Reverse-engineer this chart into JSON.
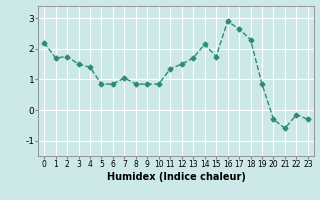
{
  "x": [
    0,
    1,
    2,
    3,
    4,
    5,
    6,
    7,
    8,
    9,
    10,
    11,
    12,
    13,
    14,
    15,
    16,
    17,
    18,
    19,
    20,
    21,
    22,
    23
  ],
  "y": [
    2.2,
    1.7,
    1.75,
    1.5,
    1.4,
    0.85,
    0.85,
    1.05,
    0.85,
    0.85,
    0.85,
    1.35,
    1.5,
    1.7,
    2.15,
    1.75,
    2.9,
    2.65,
    2.3,
    0.85,
    -0.3,
    -0.6,
    -0.15,
    -0.3
  ],
  "line_color": "#2e8b74",
  "marker": "D",
  "markersize": 2.5,
  "linewidth": 1.0,
  "xlabel": "Humidex (Indice chaleur)",
  "xlabel_fontsize": 7,
  "xlabel_weight": "bold",
  "yticks": [
    -1,
    0,
    1,
    2,
    3
  ],
  "xticks": [
    0,
    1,
    2,
    3,
    4,
    5,
    6,
    7,
    8,
    9,
    10,
    11,
    12,
    13,
    14,
    15,
    16,
    17,
    18,
    19,
    20,
    21,
    22,
    23
  ],
  "ylim": [
    -1.5,
    3.4
  ],
  "xlim": [
    -0.5,
    23.5
  ],
  "bg_color": "#cde8e8",
  "grid_color": "#ffffff",
  "tick_fontsize": 5.5,
  "ytick_fontsize": 6.5
}
